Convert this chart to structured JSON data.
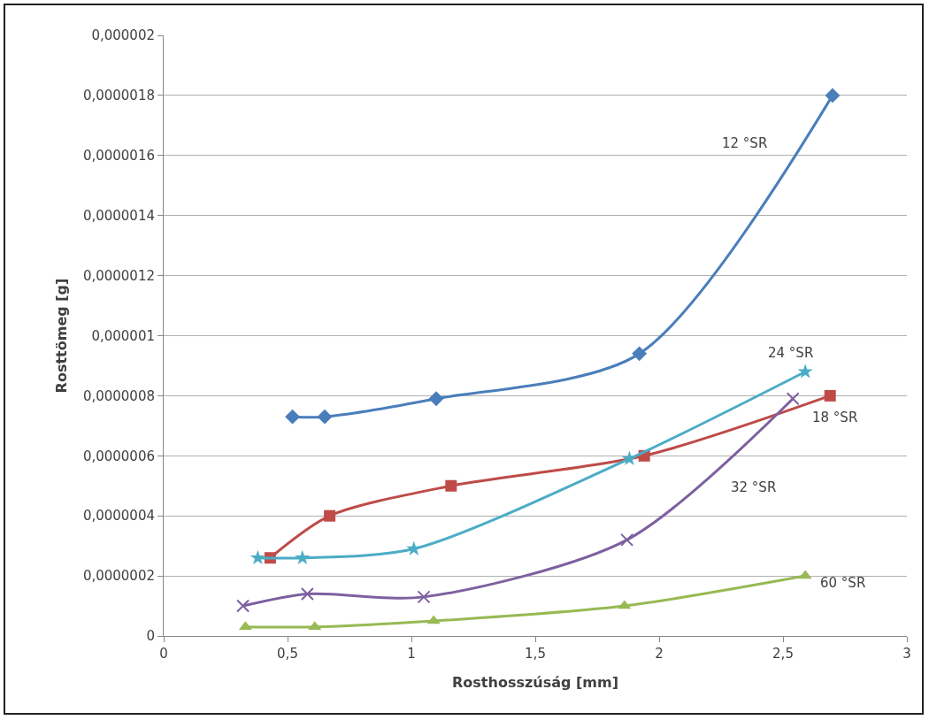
{
  "chart_data": {
    "type": "line",
    "xlabel": "Rosthosszúság [mm]",
    "ylabel": "Rosttömeg [g]",
    "xlim": [
      0,
      3
    ],
    "xticks": [
      {
        "value": 0,
        "label": "0"
      },
      {
        "value": 0.5,
        "label": "0,5"
      },
      {
        "value": 1,
        "label": "1"
      },
      {
        "value": 1.5,
        "label": "1,5"
      },
      {
        "value": 2,
        "label": "2"
      },
      {
        "value": 2.5,
        "label": "2,5"
      },
      {
        "value": 3,
        "label": "3"
      }
    ],
    "ylim": [
      0,
      2e-06
    ],
    "yticks": [
      {
        "value": 0,
        "label": "0"
      },
      {
        "value": 2e-07,
        "label": "0,0000002"
      },
      {
        "value": 4e-07,
        "label": "0,0000004"
      },
      {
        "value": 6e-07,
        "label": "0,0000006"
      },
      {
        "value": 8e-07,
        "label": "0,0000008"
      },
      {
        "value": 1e-06,
        "label": "0,000001"
      },
      {
        "value": 1.2e-06,
        "label": "0,0000012"
      },
      {
        "value": 1.4e-06,
        "label": "0,0000014"
      },
      {
        "value": 1.6e-06,
        "label": "0,0000016"
      },
      {
        "value": 1.8e-06,
        "label": "0,0000018"
      },
      {
        "value": 2e-06,
        "label": "0,000002"
      }
    ],
    "grid": "y",
    "legend": false,
    "series": [
      {
        "name": "12 °SR",
        "color": "#4a7ebb",
        "marker": "diamond",
        "x": [
          0.52,
          0.65,
          1.1,
          1.92,
          2.7
        ],
        "values": [
          7.3e-07,
          7.3e-07,
          7.9e-07,
          9.4e-07,
          1.8e-06
        ]
      },
      {
        "name": "18 °SR",
        "color": "#be4b48",
        "marker": "square",
        "x": [
          0.43,
          0.67,
          1.16,
          1.94,
          2.69
        ],
        "values": [
          2.6e-07,
          4e-07,
          5e-07,
          6e-07,
          8e-07
        ]
      },
      {
        "name": "24 °SR",
        "color": "#4bacc6",
        "marker": "star",
        "x": [
          0.38,
          0.56,
          1.01,
          1.88,
          2.59
        ],
        "values": [
          2.6e-07,
          2.6e-07,
          2.9e-07,
          5.9e-07,
          8.8e-07
        ]
      },
      {
        "name": "32 °SR",
        "color": "#7d60a0",
        "marker": "cross",
        "x": [
          0.32,
          0.58,
          1.05,
          1.87,
          2.54
        ],
        "values": [
          1e-07,
          1.4e-07,
          1.3e-07,
          3.2e-07,
          7.9e-07
        ]
      },
      {
        "name": "60 °SR",
        "color": "#98b954",
        "marker": "triangle",
        "x": [
          0.33,
          0.61,
          1.09,
          1.86,
          2.59
        ],
        "values": [
          3e-08,
          3e-08,
          5e-08,
          1e-07,
          2e-07
        ]
      }
    ]
  }
}
